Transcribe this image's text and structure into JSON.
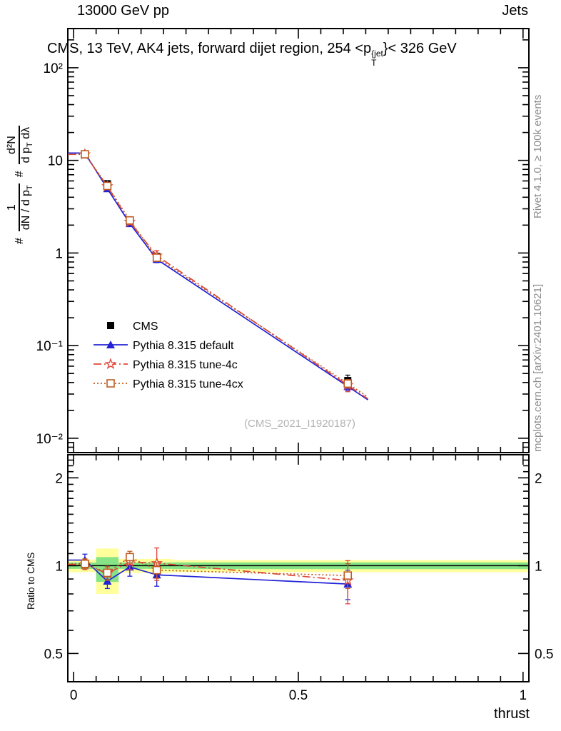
{
  "texts": {
    "header_left": "13000 GeV pp",
    "header_right": "Jets",
    "title_pre": "CMS, 13 TeV, AK4 jets, forward dijet region, 254 <p",
    "title_sup": "{jet",
    "title_sub": "T",
    "title_post": "}< 326 GeV",
    "watermark": "(CMS_2021_I1920187)",
    "side_top": "Rivet 4.1.0, ≥ 100k events",
    "side_bottom": "mcplots.cern.ch [arXiv:2401.10621]",
    "ratio_ylabel": "Ratio to CMS",
    "xlabel": "thrust",
    "ylabel": {
      "hash1": "#",
      "f1num": "1",
      "f1den_pre": "dN / d p",
      "f1den_sub": "T",
      "hash2": "#",
      "f2num": "d²N",
      "f2den_pre": "d p",
      "f2den_sub": "T",
      "f2den_post": " dλ"
    }
  },
  "colors": {
    "cms": "#000000",
    "pythia_default": "#2222d6",
    "pythia_4c": "#e04438",
    "pythia_4cx": "#bf5b20",
    "band_yellow": "#ffff9c",
    "band_green": "#86e386",
    "gray_text": "#8c8c8c"
  },
  "chart_data": {
    "type": "line",
    "title": "CMS, 13 TeV, AK4 jets, forward dijet region, 254 < pT{jet} < 326 GeV",
    "xlabel": "thrust",
    "ylabel": "# 1/(dN/dpT)  # d2N/(dpT dlambda)",
    "x": [
      0.025,
      0.075,
      0.125,
      0.185,
      0.61
    ],
    "bin_edges": [
      0,
      0.05,
      0.1,
      0.15,
      0.22,
      1.0
    ],
    "xlim": [
      -0.013,
      1.013
    ],
    "ylog": true,
    "ylim": [
      0.007,
      265
    ],
    "xticks": {
      "major": [
        0,
        0.5,
        1
      ],
      "labels": [
        "0",
        "0.5",
        "1"
      ],
      "minor_step": 0.05
    },
    "yticks": {
      "major": [
        100,
        10,
        1,
        0.1,
        0.01
      ],
      "labels": [
        "10²",
        "10",
        "1",
        "10⁻¹",
        "10⁻²"
      ]
    },
    "series": [
      {
        "name": "CMS",
        "color": "#000000",
        "marker": "square-filled",
        "line": "none",
        "values": [
          11.5,
          5.6,
          2.1,
          0.92,
          0.042
        ],
        "errors": [
          0.5,
          0.25,
          0.1,
          0.05,
          0.006
        ]
      },
      {
        "name": "Pythia 8.315 default",
        "color": "#2222d6",
        "marker": "triangle-filled",
        "line": "solid",
        "values": [
          12.0,
          4.95,
          2.08,
          0.855,
          0.0363
        ],
        "ratio": [
          1.045,
          0.885,
          0.99,
          0.93,
          0.865
        ],
        "ratio_errors": [
          0.05,
          0.05,
          0.07,
          0.08,
          0.1
        ]
      },
      {
        "name": "Pythia 8.315 tune-4c",
        "color": "#e04438",
        "marker": "star-open",
        "line": "dash-dot",
        "values": [
          11.6,
          5.25,
          2.16,
          0.935,
          0.0374
        ],
        "ratio": [
          1.01,
          0.94,
          1.03,
          1.02,
          0.89
        ],
        "ratio_errors": [
          0.04,
          0.05,
          0.06,
          0.13,
          0.15
        ]
      },
      {
        "name": "Pythia 8.315 tune-4cx",
        "color": "#bf5b20",
        "marker": "square-open",
        "line": "dotted",
        "values": [
          11.65,
          5.3,
          2.25,
          0.89,
          0.0389
        ],
        "ratio": [
          1.015,
          0.945,
          1.07,
          0.965,
          0.925
        ],
        "ratio_errors": [
          0.04,
          0.05,
          0.05,
          0.06,
          0.09
        ]
      }
    ],
    "ratio_panel": {
      "ylabel": "Ratio to CMS",
      "ylog": true,
      "ylim": [
        0.4,
        2.4
      ],
      "yticks": {
        "major": [
          2,
          1,
          0.5
        ],
        "labels": [
          "2",
          "1",
          "0.5"
        ],
        "minor": [
          0.4,
          0.6,
          0.7,
          0.8,
          0.9,
          1.1,
          1.2,
          1.3,
          1.4,
          1.5,
          1.6,
          1.7,
          1.8,
          1.9,
          2.1,
          2.2,
          2.3
        ]
      },
      "reference_line": 1,
      "bands": [
        {
          "x0": -0.013,
          "x1": 0.05,
          "yellow": [
            0.95,
            1.05
          ],
          "green": [
            0.975,
            1.025
          ]
        },
        {
          "x0": 0.05,
          "x1": 0.1,
          "yellow": [
            0.8,
            1.145
          ],
          "green": [
            0.88,
            1.07
          ]
        },
        {
          "x0": 0.1,
          "x1": 0.15,
          "yellow": [
            0.945,
            1.055
          ],
          "green": [
            0.975,
            1.025
          ]
        },
        {
          "x0": 0.15,
          "x1": 0.22,
          "yellow": [
            0.945,
            1.055
          ],
          "green": [
            0.975,
            1.025
          ]
        },
        {
          "x0": 0.22,
          "x1": 1.013,
          "yellow": [
            0.95,
            1.045
          ],
          "green": [
            0.973,
            1.026
          ]
        }
      ],
      "band_colors": {
        "yellow": "#ffff9c",
        "green": "#86e386"
      }
    },
    "legend_position": "center-left",
    "grid": false
  },
  "legend": {
    "entries": [
      "CMS",
      "Pythia 8.315 default",
      "Pythia 8.315 tune-4c",
      "Pythia 8.315 tune-4cx"
    ]
  }
}
